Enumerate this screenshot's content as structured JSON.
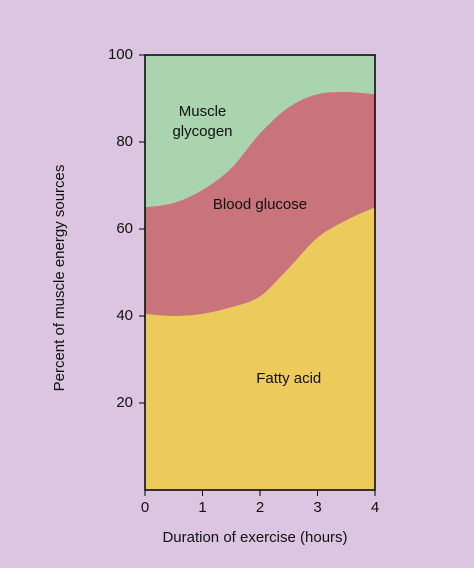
{
  "chart_data": {
    "type": "stacked-area",
    "x": [
      0,
      0.5,
      1,
      1.5,
      2,
      2.5,
      3,
      3.5,
      4
    ],
    "series": [
      {
        "name": "Fatty acid",
        "color": "#eccb5c",
        "values": [
          40.5,
          40,
          40.5,
          42,
          44.5,
          51,
          58,
          62,
          65
        ]
      },
      {
        "name": "Blood glucose",
        "color": "#c8747a",
        "values": [
          24.5,
          26,
          28.5,
          32,
          37.5,
          37,
          33,
          29.5,
          26
        ]
      },
      {
        "name": "Muscle glycogen",
        "color": "#a9d4ad",
        "values": [
          35,
          34,
          31,
          26,
          18,
          12,
          9,
          8.5,
          9
        ]
      }
    ],
    "xlabel": "Duration of exercise (hours)",
    "ylabel": "Percent of muscle energy sources",
    "xlim": [
      0,
      4
    ],
    "xticks": [
      0,
      1,
      2,
      3,
      4
    ],
    "ylim": [
      0,
      100
    ],
    "yticks": [
      20,
      40,
      60,
      80,
      100
    ]
  }
}
